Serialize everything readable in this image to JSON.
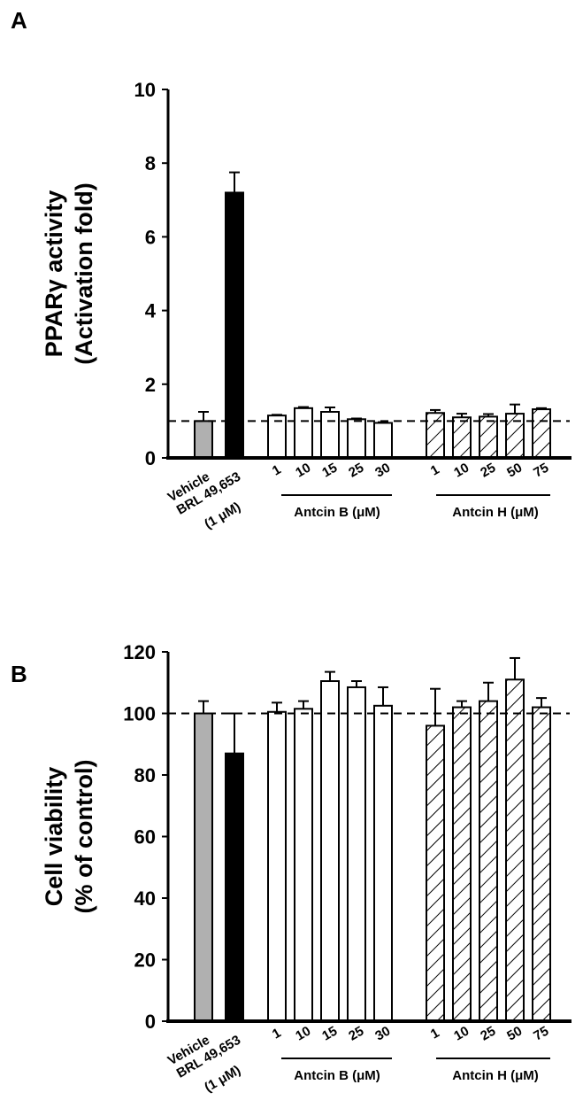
{
  "chart_data": [
    {
      "type": "bar",
      "panel_label": "A",
      "ylabel_lines": [
        "PPARγ activity",
        "(Activation fold)"
      ],
      "ylim": [
        0,
        10
      ],
      "yticks": [
        "0",
        "2",
        "4",
        "6",
        "8",
        "10"
      ],
      "reference_line": 1,
      "categories": [
        "Vehicle",
        "BRL 49,653",
        "1",
        "10",
        "15",
        "25",
        "30",
        "1",
        "10",
        "25",
        "50",
        "75"
      ],
      "brl_dose": "(1 μM)",
      "groups": [
        "Antcin B (μM)",
        "Antcin H (μM)"
      ],
      "values": [
        1.0,
        7.2,
        1.15,
        1.35,
        1.25,
        1.05,
        0.95,
        1.22,
        1.1,
        1.12,
        1.2,
        1.32
      ],
      "errors": [
        0.25,
        0.55,
        0.02,
        0.03,
        0.12,
        0.02,
        0.02,
        0.08,
        0.1,
        0.07,
        0.25,
        0.03
      ]
    },
    {
      "type": "bar",
      "panel_label": "B",
      "ylabel_lines": [
        "Cell viability",
        "(% of control)"
      ],
      "ylim": [
        0,
        120
      ],
      "yticks": [
        "0",
        "20",
        "40",
        "60",
        "80",
        "100",
        "120"
      ],
      "reference_line": 100,
      "categories": [
        "Vehicle",
        "BRL 49,653",
        "1",
        "10",
        "15",
        "25",
        "30",
        "1",
        "10",
        "25",
        "50",
        "75"
      ],
      "brl_dose": "(1 μM)",
      "groups": [
        "Antcin B (μM)",
        "Antcin H (μM)"
      ],
      "values": [
        100,
        87,
        100.5,
        101.5,
        110.5,
        108.5,
        102.5,
        96,
        102,
        104,
        111,
        102
      ],
      "errors": [
        4,
        13,
        3,
        2.5,
        3,
        2,
        6,
        12,
        2,
        6,
        7,
        3
      ]
    }
  ],
  "styles": {
    "vehicle": "#b0b0b0",
    "brl": "#000000",
    "antcin_b": "#ffffff",
    "antcin_h": "hatched"
  }
}
